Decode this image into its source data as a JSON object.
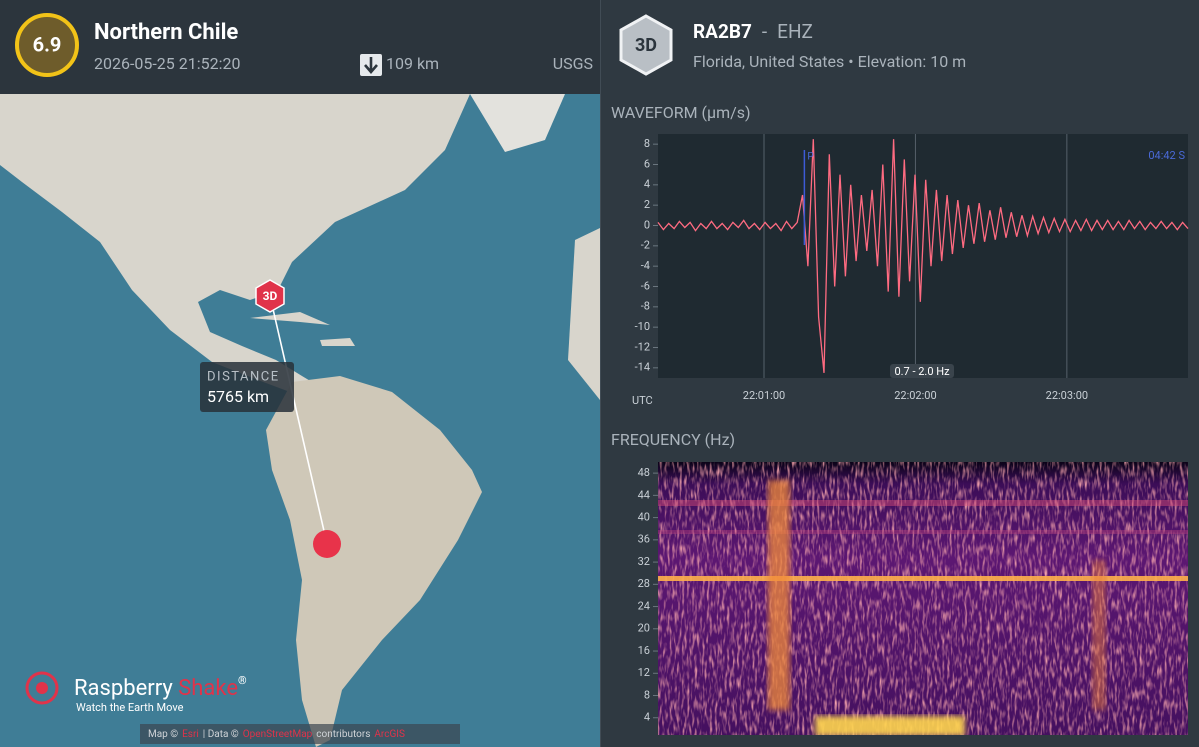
{
  "event": {
    "magnitude": "6.9",
    "region": "Northern Chile",
    "time": "2026-05-25 21:52:20",
    "depth": "109 km",
    "source": "USGS"
  },
  "station": {
    "badge": "3D",
    "code": "RA2B7",
    "separator": "-",
    "channel": "EHZ",
    "location": "Florida, United States",
    "bullet": "•",
    "elevation": "Elevation: 10 m"
  },
  "map": {
    "station_marker": "3D",
    "distance_label": "DISTANCE",
    "distance": "5765 km",
    "logo_name": "Raspberry",
    "logo_name_accent": "Shake",
    "logo_mark": "®",
    "tagline": "Watch the Earth Move",
    "attribution": [
      "Map ©",
      "Esri",
      "| Data ©",
      "OpenStreetMap",
      "contributors",
      "ArcGIS"
    ]
  },
  "waveform": {
    "title": "WAVEFORM  (µm/s)",
    "xlabel": "UTC",
    "timer": "04:42  S",
    "filter": "0.7 - 2.0 Hz",
    "pick": {
      "label": "P",
      "time": "22:01:16"
    },
    "xlim": [
      "22:00:18",
      "22:03:48"
    ],
    "xticks": [
      "22:01:00",
      "22:02:00",
      "22:03:00"
    ],
    "ylim": [
      -15,
      9
    ],
    "yticks": [
      8,
      6,
      4,
      2,
      0,
      -2,
      -4,
      -6,
      -8,
      -10,
      -12,
      -14
    ],
    "color": "#ff6b81",
    "values": [
      0.3,
      -0.4,
      0.2,
      -0.3,
      0.4,
      -0.2,
      0.3,
      -0.5,
      0.2,
      -0.3,
      0.4,
      -0.3,
      0.2,
      -0.4,
      0.3,
      -0.2,
      0.5,
      -0.3,
      0.2,
      -0.4,
      0.3,
      -0.3,
      0.2,
      -0.5,
      0.4,
      -0.3,
      0.3,
      3,
      -4,
      8.5,
      -9,
      -14.5,
      7,
      -6,
      5,
      -5,
      4,
      -3.5,
      3,
      -2.5,
      3.5,
      -4,
      6,
      -6.5,
      8.5,
      -7,
      6.5,
      -5.5,
      5,
      -7.5,
      4.5,
      -4,
      3.5,
      -3.5,
      3,
      -2.8,
      2.5,
      -2.2,
      2,
      -1.8,
      2.2,
      -1.6,
      1.5,
      -1.4,
      1.8,
      -1.2,
      1.3,
      -1.1,
      1,
      -1,
      0.9,
      -0.8,
      0.8,
      -0.7,
      0.7,
      -0.6,
      0.6,
      -0.6,
      0.5,
      -0.5,
      0.6,
      -0.5,
      0.5,
      -0.4,
      0.5,
      -0.4,
      0.4,
      -0.4,
      0.5,
      -0.3,
      0.4,
      -0.4,
      0.3,
      -0.3,
      0.4,
      -0.3,
      0.3,
      -0.4,
      0.3,
      -0.3
    ]
  },
  "spectrogram": {
    "title": "FREQUENCY  (Hz)",
    "ylim": [
      0,
      50
    ],
    "yticks": [
      4,
      8,
      12,
      16,
      20,
      24,
      28,
      32,
      36,
      40,
      44,
      48
    ]
  }
}
